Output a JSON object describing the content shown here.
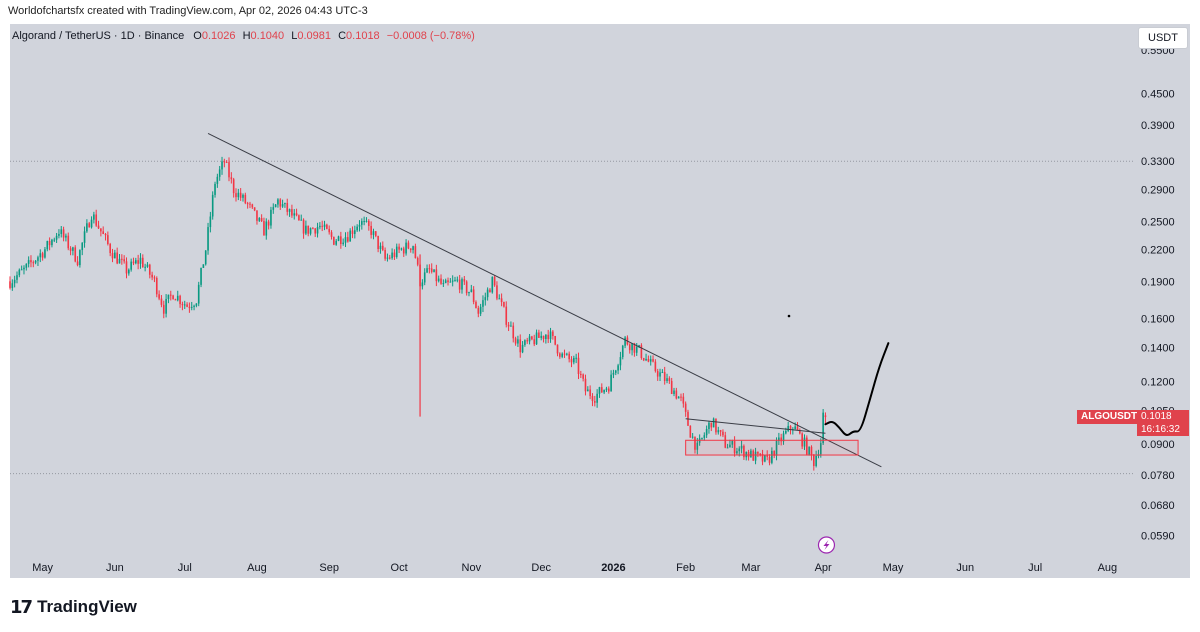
{
  "caption": "Worldofchartsfx created with TradingView.com, Apr 02, 2026 04:43 UTC-3",
  "header": {
    "symbol": "Algorand / TetherUS · 1D · Binance",
    "o_label": "O",
    "o_value": "0.1026",
    "h_label": "H",
    "h_value": "0.1040",
    "l_label": "L",
    "l_value": "0.0981",
    "c_label": "C",
    "c_value": "0.1018",
    "change": "−0.0008 (−0.78%)"
  },
  "currency": "USDT",
  "price_tag": {
    "ticker": "ALGOUSDT",
    "price": "0.1018",
    "countdown": "16:16:32"
  },
  "footer": {
    "logo_mark": "17",
    "brand": "TradingView"
  },
  "colors": {
    "plot_bg": "#d1d4dc",
    "up": "#089981",
    "down": "#f23645",
    "trendline": "#3a3d46",
    "projection": "#000000",
    "price_tag": "#e0424c",
    "dotted": "#9598a1"
  },
  "chart_data": {
    "type": "candlestick",
    "title": "Algorand / TetherUS · 1D · Binance",
    "scale": "logarithmic",
    "ylim": [
      0.054,
      0.62
    ],
    "y_ticks": [
      "0.5500",
      "0.4500",
      "0.3900",
      "0.3300",
      "0.2900",
      "0.2500",
      "0.2200",
      "0.1900",
      "0.1600",
      "0.1400",
      "0.1200",
      "0.1050",
      "0.0900",
      "0.0780",
      "0.0680",
      "0.0590"
    ],
    "x_ticks": [
      "May",
      "Jun",
      "Jul",
      "Aug",
      "Sep",
      "Oct",
      "Nov",
      "Dec",
      "2026",
      "Feb",
      "Mar",
      "Apr",
      "May",
      "Jun",
      "Jul",
      "Aug"
    ],
    "x_range": [
      "2025-04-17",
      "2026-08-12"
    ],
    "close_path": [
      [
        "2025-04-17",
        0.19
      ],
      [
        "2025-04-23",
        0.2
      ],
      [
        "2025-05-02",
        0.22
      ],
      [
        "2025-05-08",
        0.24
      ],
      [
        "2025-05-16",
        0.21
      ],
      [
        "2025-05-22",
        0.26
      ],
      [
        "2025-05-30",
        0.22
      ],
      [
        "2025-06-06",
        0.2
      ],
      [
        "2025-06-12",
        0.21
      ],
      [
        "2025-06-18",
        0.19
      ],
      [
        "2025-06-22",
        0.168
      ],
      [
        "2025-06-26",
        0.18
      ],
      [
        "2025-07-02",
        0.17
      ],
      [
        "2025-07-06",
        0.175
      ],
      [
        "2025-07-10",
        0.22
      ],
      [
        "2025-07-14",
        0.3
      ],
      [
        "2025-07-18",
        0.33
      ],
      [
        "2025-07-22",
        0.29
      ],
      [
        "2025-07-28",
        0.27
      ],
      [
        "2025-08-04",
        0.24
      ],
      [
        "2025-08-10",
        0.275
      ],
      [
        "2025-08-15",
        0.26
      ],
      [
        "2025-08-22",
        0.24
      ],
      [
        "2025-08-28",
        0.245
      ],
      [
        "2025-09-03",
        0.23
      ],
      [
        "2025-09-09",
        0.235
      ],
      [
        "2025-09-14",
        0.25
      ],
      [
        "2025-09-19",
        0.24
      ],
      [
        "2025-09-25",
        0.21
      ],
      [
        "2025-10-02",
        0.22
      ],
      [
        "2025-10-07",
        0.225
      ],
      [
        "2025-10-10",
        0.19
      ],
      [
        "2025-10-14",
        0.2
      ],
      [
        "2025-10-20",
        0.185
      ],
      [
        "2025-10-26",
        0.19
      ],
      [
        "2025-11-01",
        0.18
      ],
      [
        "2025-11-04",
        0.165
      ],
      [
        "2025-11-10",
        0.19
      ],
      [
        "2025-11-16",
        0.16
      ],
      [
        "2025-11-22",
        0.14
      ],
      [
        "2025-11-28",
        0.145
      ],
      [
        "2025-12-04",
        0.15
      ],
      [
        "2025-12-10",
        0.135
      ],
      [
        "2025-12-16",
        0.13
      ],
      [
        "2025-12-20",
        0.115
      ],
      [
        "2025-12-24",
        0.112
      ],
      [
        "2025-12-30",
        0.118
      ],
      [
        "2026-01-06",
        0.145
      ],
      [
        "2026-01-12",
        0.138
      ],
      [
        "2026-01-18",
        0.128
      ],
      [
        "2026-01-24",
        0.12
      ],
      [
        "2026-01-30",
        0.11
      ],
      [
        "2026-02-03",
        0.095
      ],
      [
        "2026-02-06",
        0.088
      ],
      [
        "2026-02-12",
        0.1
      ],
      [
        "2026-02-18",
        0.09
      ],
      [
        "2026-02-24",
        0.088
      ],
      [
        "2026-03-02",
        0.085
      ],
      [
        "2026-03-08",
        0.083
      ],
      [
        "2026-03-14",
        0.092
      ],
      [
        "2026-03-19",
        0.098
      ],
      [
        "2026-03-24",
        0.09
      ],
      [
        "2026-03-28",
        0.083
      ],
      [
        "2026-03-31",
        0.091
      ],
      [
        "2026-04-01",
        0.1026
      ],
      [
        "2026-04-02",
        0.1018
      ]
    ],
    "last_candle": {
      "date": "2026-04-02",
      "open": 0.1026,
      "high": 0.104,
      "low": 0.0981,
      "close": 0.1018
    },
    "october_wick": {
      "date": "2025-10-10",
      "low": 0.102
    },
    "annotations": [
      {
        "type": "trendline",
        "points": [
          [
            "2025-07-11",
            0.375
          ],
          [
            "2026-04-26",
            0.081
          ]
        ]
      },
      {
        "type": "trendline",
        "points": [
          [
            "2026-02-01",
            0.101
          ],
          [
            "2026-04-02",
            0.0945
          ]
        ]
      },
      {
        "type": "range_box",
        "from": "2026-02-01",
        "to": "2026-04-16",
        "low": 0.0855,
        "high": 0.0915
      },
      {
        "type": "projection",
        "points": [
          [
            "2026-04-02",
            0.0985
          ],
          [
            "2026-04-05",
            0.1
          ],
          [
            "2026-04-08",
            0.097
          ],
          [
            "2026-04-11",
            0.093
          ],
          [
            "2026-04-14",
            0.0955
          ],
          [
            "2026-04-17",
            0.095
          ],
          [
            "2026-04-21",
            0.11
          ],
          [
            "2026-04-25",
            0.128
          ],
          [
            "2026-04-29",
            0.143
          ]
        ]
      },
      {
        "type": "hline_dotted",
        "price": 0.33
      },
      {
        "type": "hline_dotted",
        "price": 0.0785
      }
    ]
  }
}
